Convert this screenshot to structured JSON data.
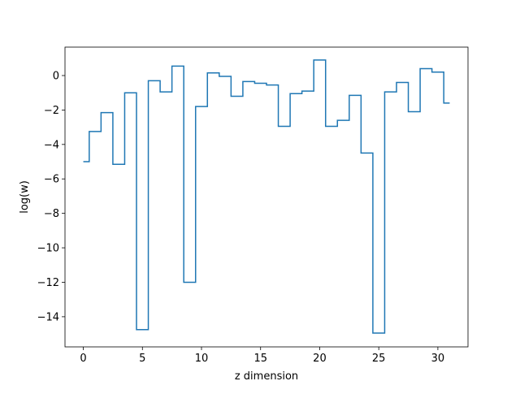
{
  "chart_data": {
    "type": "line",
    "drawstyle": "steps-mid",
    "title": "",
    "xlabel": "z dimension",
    "ylabel": "log(w)",
    "xlim": [
      -1.55,
      32.55
    ],
    "ylim": [
      -15.75,
      1.65
    ],
    "grid": false,
    "x_ticks": [
      0,
      5,
      10,
      15,
      20,
      25,
      30
    ],
    "y_ticks": [
      0,
      -2,
      -4,
      -6,
      -8,
      -10,
      -12,
      -14
    ],
    "line_color": "#1f77b4",
    "x": [
      0,
      1,
      2,
      3,
      4,
      5,
      6,
      7,
      8,
      9,
      10,
      11,
      12,
      13,
      14,
      15,
      16,
      17,
      18,
      19,
      20,
      21,
      22,
      23,
      24,
      25,
      26,
      27,
      28,
      29,
      30,
      31
    ],
    "values": [
      -5.0,
      -3.25,
      -2.15,
      -5.15,
      -1.0,
      -14.75,
      -0.3,
      -0.95,
      0.55,
      -12.0,
      -1.8,
      0.15,
      -0.05,
      -1.2,
      -0.35,
      -0.45,
      -0.55,
      -2.95,
      -1.05,
      -0.9,
      0.9,
      -2.95,
      -2.6,
      -1.15,
      -4.5,
      -14.95,
      -0.95,
      -0.4,
      -2.1,
      0.4,
      0.2,
      -1.6
    ]
  }
}
